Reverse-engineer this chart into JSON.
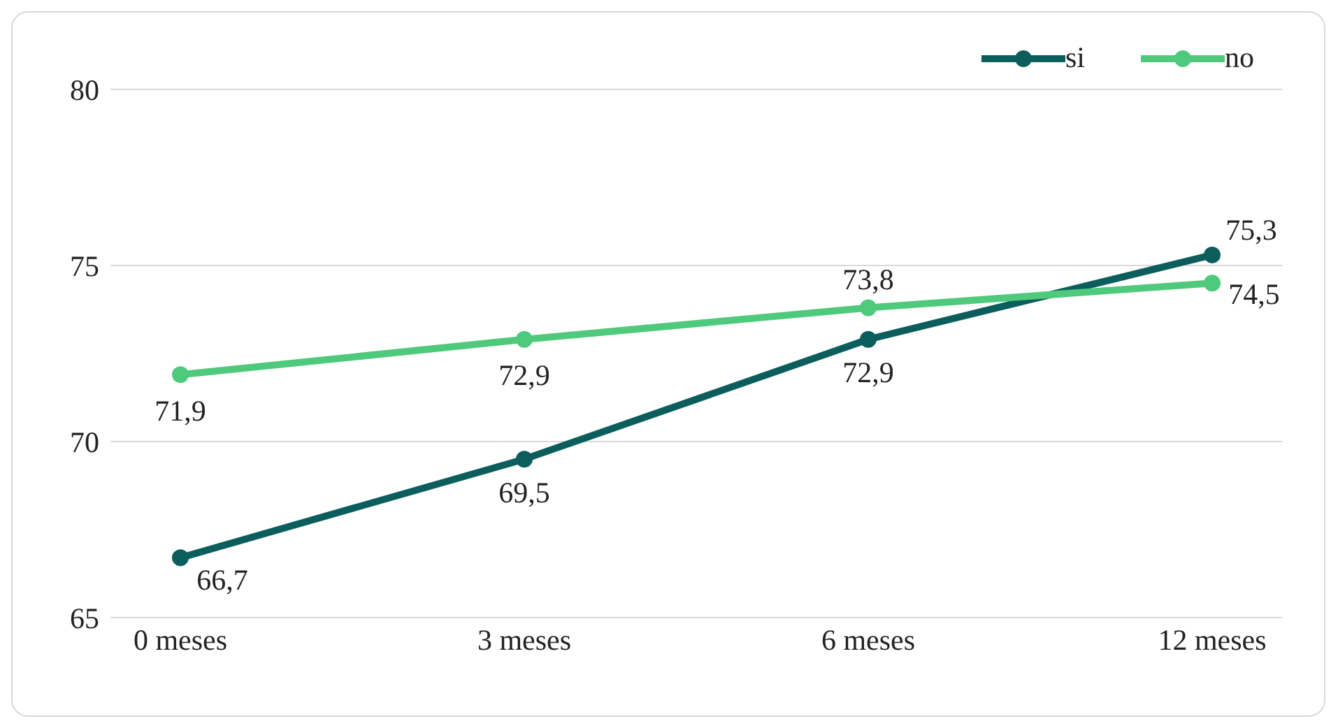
{
  "chart_data": {
    "type": "line",
    "categories": [
      "0 meses",
      "3 meses",
      "6 meses",
      "12 meses"
    ],
    "series": [
      {
        "name": "si",
        "color": "#0b5e5b",
        "values": [
          66.7,
          69.5,
          72.9,
          75.3
        ],
        "value_labels": [
          "66,7",
          "69,5",
          "72,9",
          "75,3"
        ]
      },
      {
        "name": "no",
        "color": "#4fc97c",
        "values": [
          71.9,
          72.9,
          73.8,
          74.5
        ],
        "value_labels": [
          "71,9",
          "72,9",
          "73,8",
          "74,5"
        ]
      }
    ],
    "ylim": [
      65,
      80
    ],
    "yticks": [
      65,
      70,
      75,
      80
    ],
    "grid": "y",
    "legend": "top right",
    "marker": "circle",
    "line_style": "solid"
  }
}
